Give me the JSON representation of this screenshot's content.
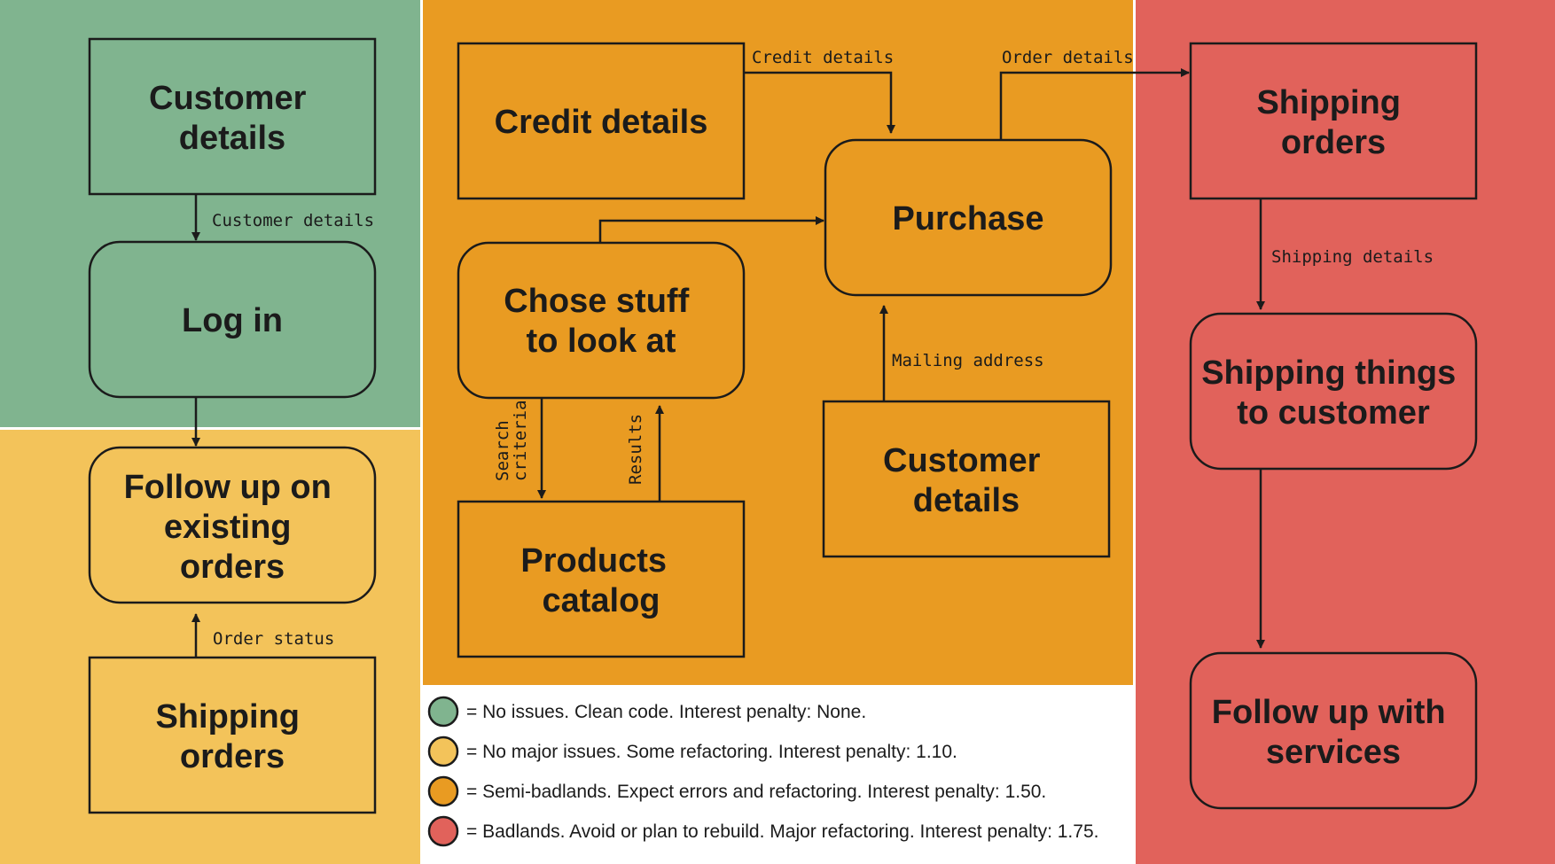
{
  "colors": {
    "green": "#80b48f",
    "yellow": "#f3c35a",
    "orange": "#e99b22",
    "red": "#e1625b",
    "ink": "#1b1b1b",
    "white": "#ffffff"
  },
  "nodes": {
    "customer_details_green": [
      "Customer",
      "details"
    ],
    "log_in": [
      "Log in"
    ],
    "follow_up_orders": [
      "Follow up on",
      "existing",
      "orders"
    ],
    "shipping_orders_yellow": [
      "Shipping",
      "orders"
    ],
    "credit_details": [
      "Credit details"
    ],
    "purchase": [
      "Purchase"
    ],
    "chose_stuff": [
      "Chose stuff",
      "to look at"
    ],
    "customer_details_orange": [
      "Customer",
      "details"
    ],
    "products_catalog": [
      "Products",
      "catalog"
    ],
    "shipping_orders_red": [
      "Shipping",
      "orders"
    ],
    "shipping_things": [
      "Shipping things",
      "to customer"
    ],
    "follow_up_services": [
      "Follow up with",
      "services"
    ]
  },
  "edges": {
    "customer_details": "Customer details",
    "order_status": "Order status",
    "credit_details": "Credit details",
    "order_details": "Order details",
    "mailing_address": "Mailing address",
    "search_criteria": [
      "Search",
      "criteria"
    ],
    "results": "Results",
    "shipping_details": "Shipping details"
  },
  "legend": [
    {
      "color": "#80b48f",
      "text": "= No issues. Clean code. Interest penalty: None."
    },
    {
      "color": "#f3c35a",
      "text": "= No major issues. Some refactoring. Interest penalty: 1.10."
    },
    {
      "color": "#e99b22",
      "text": "= Semi-badlands. Expect errors and refactoring. Interest penalty: 1.50."
    },
    {
      "color": "#e1625b",
      "text": "= Badlands. Avoid or plan to rebuild. Major refactoring. Interest penalty: 1.75."
    }
  ]
}
